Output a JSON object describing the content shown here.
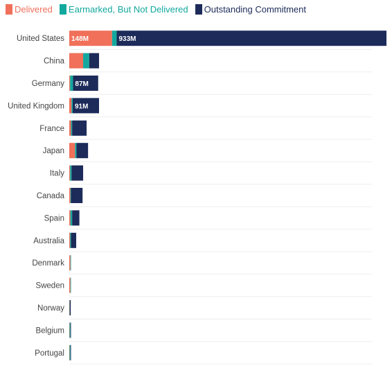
{
  "chart_data": {
    "type": "bar",
    "orientation": "horizontal",
    "stacked": true,
    "title": "",
    "xlabel": "",
    "ylabel": "",
    "legend_position": "top-left",
    "grid": "horizontal-lines",
    "categories": [
      "United States",
      "China",
      "Germany",
      "United Kingdom",
      "France",
      "Japan",
      "Italy",
      "Canada",
      "Spain",
      "Australia",
      "Denmark",
      "Sweden",
      "Norway",
      "Belgium",
      "Portugal"
    ],
    "series": [
      {
        "name": "Delivered",
        "color": "#f0705a",
        "values": [
          148,
          48,
          3,
          8,
          6,
          20,
          3,
          4,
          4,
          3,
          4,
          4,
          1,
          1,
          1
        ]
      },
      {
        "name": "Earmarked, But Not Delivered",
        "color": "#13a89e",
        "values": [
          16,
          21,
          10,
          4,
          4,
          5,
          5,
          2,
          6,
          3,
          1,
          1,
          1,
          3,
          3
        ]
      },
      {
        "name": "Outstanding Commitment",
        "color": "#1c2b59",
        "values": [
          933,
          34,
          87,
          91,
          50,
          40,
          40,
          40,
          25,
          18,
          0,
          0,
          3,
          1,
          1
        ]
      }
    ],
    "data_labels": [
      {
        "category": "United States",
        "series": "Delivered",
        "text": "148M"
      },
      {
        "category": "United States",
        "series": "Outstanding Commitment",
        "text": "933M"
      },
      {
        "category": "Germany",
        "series": "Outstanding Commitment",
        "text": "87M"
      },
      {
        "category": "United Kingdom",
        "series": "Outstanding Commitment",
        "text": "91M"
      }
    ]
  }
}
